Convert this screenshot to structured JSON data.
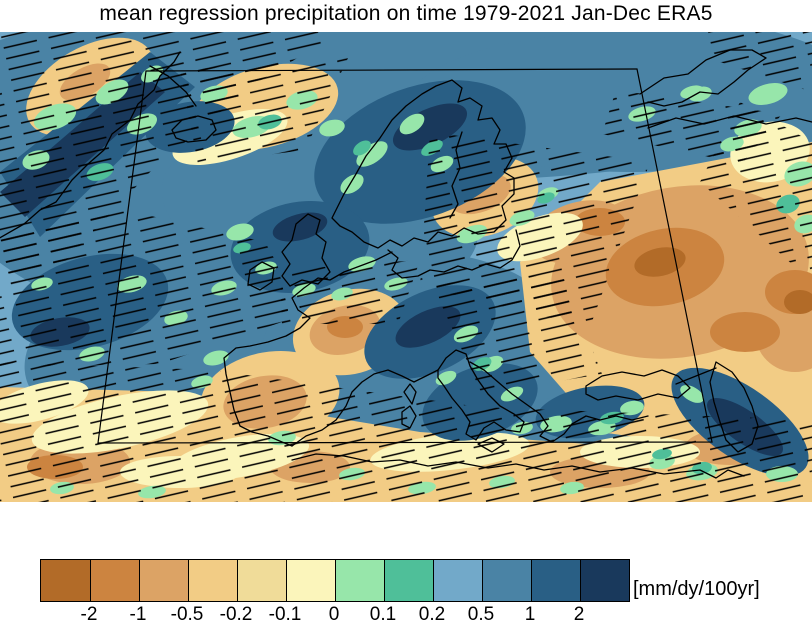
{
  "title": "mean regression precipitation on time 1979-2021 Jan-Dec ERA5",
  "colorbar": {
    "units": "[mm/dy/100yr]",
    "ticks": [
      "-2",
      "-1",
      "-0.5",
      "-0.2",
      "-0.1",
      "0",
      "0.1",
      "0.2",
      "0.5",
      "1",
      "2"
    ],
    "colors": [
      "#b26b28",
      "#cc8440",
      "#dca365",
      "#f2cc85",
      "#f0dc99",
      "#fbf5bb",
      "#97e6aa",
      "#4fbf99",
      "#72a9c9",
      "#4a83a5",
      "#295f85",
      "#19395c"
    ]
  },
  "chart_data": {
    "type": "heatmap",
    "title": "mean regression precipitation on time 1979-2021 Jan-Dec ERA5",
    "units": "mm/dy/100yr",
    "colorbar_levels": [
      -2,
      -1,
      -0.5,
      -0.2,
      -0.1,
      0,
      0.1,
      0.2,
      0.5,
      1,
      2
    ],
    "palette": [
      "#b26b28",
      "#cc8440",
      "#dca365",
      "#f2cc85",
      "#f0dc99",
      "#fbf5bb",
      "#97e6aa",
      "#4fbf99",
      "#72a9c9",
      "#4a83a5",
      "#295f85",
      "#19395c"
    ],
    "legend_position": "bottom",
    "map_extent": "Europe and North Atlantic (Greenland/Iceland to the Caspian Sea, North Africa to northern Scandinavia)",
    "overlays": [
      "black coastlines",
      "black diagonal-line hatching over large parts of the domain",
      "thin black trapezoid marking an inner sub-domain boundary"
    ],
    "annotations": [
      "Blue/teal shading (positive regression, ~0.2 to >2 mm/dy/100yr) over the North Atlantic, around Iceland and Norway, the British Isles, the Alps/Italy and the Caucasus-Caspian band",
      "Orange/tan shading (negative regression, ~-0.2 to -2 mm/dy/100yr) over eastern Europe and the Caspian lowlands, central France, Iberia, North Africa and interior Greenland",
      "Pale yellow and green bands mark near-zero values (-0.1 to 0.2) along the transitions"
    ]
  }
}
